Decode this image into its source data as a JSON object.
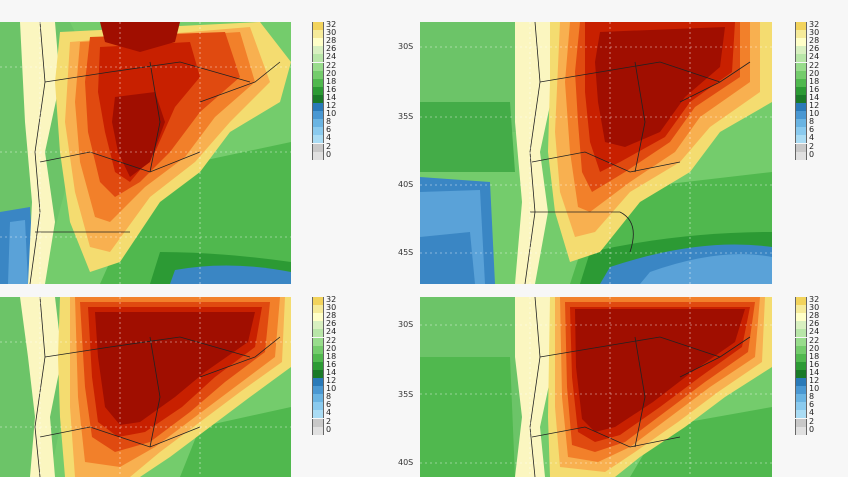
{
  "legend": {
    "levels": [
      "32",
      "30",
      "28",
      "26",
      "24",
      "22",
      "20",
      "18",
      "16",
      "14",
      "12",
      "10",
      "8",
      "6",
      "4",
      "2",
      "0"
    ],
    "colors": [
      "#f2d35c",
      "#f6eb9a",
      "#ffffc8",
      "#d8f0c0",
      "#b8e6a8",
      "#98dc8c",
      "#74cc6c",
      "#50b84e",
      "#2c9a34",
      "#1a7a28",
      "#2a7ab8",
      "#4a98d2",
      "#6ab4e2",
      "#8acaee",
      "#aadcf4",
      "#c8c8c8",
      "#e0e0e0"
    ]
  },
  "palette": {
    "deep_red": "#a00e00",
    "red": "#c82000",
    "red_orange": "#e04a10",
    "orange": "#f2802a",
    "light_orange": "#f8b050",
    "yellow": "#f4dc70",
    "pale_yellow": "#fbf6c0",
    "pale_green": "#c8ecb4",
    "light_green": "#9ed88a",
    "green": "#6cc468",
    "mid_green": "#44ac48",
    "dark_green": "#2a8a36",
    "blue": "#3a86c4",
    "light_blue": "#5aa2d8"
  },
  "panels": [
    {
      "id": "top-left",
      "lat_labels": []
    },
    {
      "id": "top-right",
      "lat_labels": [
        "30S",
        "35S",
        "40S",
        "45S"
      ]
    },
    {
      "id": "bottom-left",
      "lat_labels": []
    },
    {
      "id": "bottom-right",
      "lat_labels": [
        "30S",
        "35S",
        "40S"
      ]
    }
  ]
}
